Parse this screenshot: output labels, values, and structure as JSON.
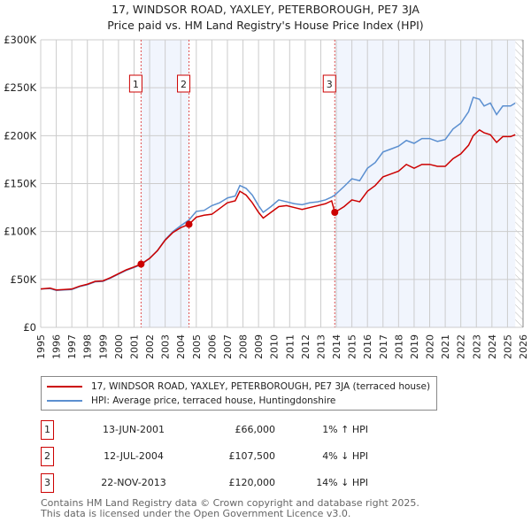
{
  "title": "17, WINDSOR ROAD, YAXLEY, PETERBOROUGH, PE7 3JA",
  "subtitle": "Price paid vs. HM Land Registry's House Price Index (HPI)",
  "chart_data": {
    "type": "line",
    "xlim": [
      1995,
      2026
    ],
    "ylim": [
      0,
      300000
    ],
    "yticks": [
      {
        "v": 0,
        "label": "£0"
      },
      {
        "v": 50000,
        "label": "£50K"
      },
      {
        "v": 100000,
        "label": "£100K"
      },
      {
        "v": 150000,
        "label": "£150K"
      },
      {
        "v": 200000,
        "label": "£200K"
      },
      {
        "v": 250000,
        "label": "£250K"
      },
      {
        "v": 300000,
        "label": "£300K"
      }
    ],
    "xticks": [
      "1995",
      "1996",
      "1997",
      "1998",
      "1999",
      "2000",
      "2001",
      "2002",
      "2003",
      "2004",
      "2005",
      "2006",
      "2007",
      "2008",
      "2009",
      "2010",
      "2011",
      "2012",
      "2013",
      "2014",
      "2015",
      "2016",
      "2017",
      "2018",
      "2019",
      "2020",
      "2021",
      "2022",
      "2023",
      "2024",
      "2025",
      "2026"
    ],
    "shaded_ranges": [
      [
        2001.45,
        2004.53
      ],
      [
        2013.9,
        2025.5
      ]
    ],
    "hatched_from": 2025.5,
    "series": [
      {
        "name": "17, WINDSOR ROAD, YAXLEY, PETERBOROUGH, PE7 3JA (terraced house)",
        "color": "#cc0000",
        "x": [
          1995,
          1995.6,
          1996,
          1996.5,
          1997,
          1997.5,
          1998,
          1998.5,
          1999,
          1999.5,
          2000,
          2000.5,
          2001,
          2001.45,
          2002,
          2002.5,
          2003,
          2003.5,
          2004,
          2004.53,
          2005,
          2005.5,
          2006,
          2006.5,
          2007,
          2007.5,
          2007.8,
          2008.2,
          2008.6,
          2009.0,
          2009.3,
          2009.8,
          2010.3,
          2010.8,
          2011.3,
          2011.8,
          2012.3,
          2012.8,
          2013.3,
          2013.7,
          2013.9,
          2014.5,
          2015,
          2015.5,
          2016,
          2016.5,
          2017,
          2017.5,
          2018,
          2018.5,
          2019,
          2019.5,
          2020,
          2020.5,
          2021,
          2021.5,
          2022,
          2022.5,
          2022.8,
          2023.2,
          2023.5,
          2023.9,
          2024.3,
          2024.7,
          2025.2,
          2025.5
        ],
        "y": [
          40000,
          41000,
          39000,
          39500,
          40000,
          43000,
          45000,
          48000,
          48500,
          52000,
          56000,
          60000,
          63000,
          66000,
          72000,
          80000,
          91000,
          99000,
          104000,
          107500,
          115000,
          117000,
          118000,
          124000,
          130000,
          132000,
          142000,
          138000,
          130000,
          120000,
          114000,
          120000,
          126000,
          127000,
          125000,
          123000,
          125000,
          127000,
          129000,
          132000,
          120000,
          126000,
          133000,
          131000,
          142000,
          148000,
          157000,
          160000,
          163000,
          170000,
          166000,
          170000,
          170000,
          168000,
          168000,
          176000,
          181000,
          190000,
          200000,
          206000,
          203000,
          201000,
          193000,
          199000,
          199000,
          201000
        ]
      },
      {
        "name": "HPI: Average price, terraced house, Huntingdonshire",
        "color": "#5b8fd0",
        "x": [
          1995,
          1995.6,
          1996,
          1996.5,
          1997,
          1997.5,
          1998,
          1998.5,
          1999,
          1999.5,
          2000,
          2000.5,
          2001,
          2001.45,
          2002,
          2002.5,
          2003,
          2003.5,
          2004,
          2004.53,
          2005,
          2005.5,
          2006,
          2006.5,
          2007,
          2007.5,
          2007.8,
          2008.2,
          2008.6,
          2009.0,
          2009.3,
          2009.8,
          2010.3,
          2010.8,
          2011.3,
          2011.8,
          2012.3,
          2012.8,
          2013.3,
          2013.7,
          2013.9,
          2014.5,
          2015,
          2015.5,
          2016,
          2016.5,
          2017,
          2017.5,
          2018,
          2018.5,
          2019,
          2019.5,
          2020,
          2020.5,
          2021,
          2021.5,
          2022,
          2022.5,
          2022.8,
          2023.2,
          2023.5,
          2023.9,
          2024.3,
          2024.7,
          2025.2,
          2025.5
        ],
        "y": [
          40000,
          40500,
          38500,
          39000,
          39500,
          42500,
          44500,
          47500,
          48000,
          51500,
          55500,
          59500,
          62500,
          65500,
          72000,
          80000,
          91500,
          100000,
          106000,
          112000,
          121000,
          122000,
          127000,
          130000,
          135000,
          137000,
          148000,
          145000,
          138000,
          127000,
          120000,
          126000,
          133000,
          131000,
          129000,
          128000,
          130000,
          131000,
          133000,
          136000,
          138000,
          147000,
          155000,
          153000,
          166000,
          172000,
          183000,
          186000,
          189000,
          195000,
          192000,
          197000,
          197000,
          194000,
          196000,
          207000,
          213000,
          225000,
          240000,
          238000,
          231000,
          234000,
          222000,
          231000,
          231000,
          234000
        ]
      }
    ],
    "annotations": [
      {
        "label": "1",
        "x": 2001.45,
        "y": 66000
      },
      {
        "label": "2",
        "x": 2004.53,
        "y": 107500
      },
      {
        "label": "3",
        "x": 2013.9,
        "y": 120000
      }
    ]
  },
  "legend": [
    "17, WINDSOR ROAD, YAXLEY, PETERBOROUGH, PE7 3JA (terraced house)",
    "HPI: Average price, terraced house, Huntingdonshire"
  ],
  "sales": [
    {
      "num": "1",
      "date": "13-JUN-2001",
      "price": "£66,000",
      "hpi": "1% ↑ HPI"
    },
    {
      "num": "2",
      "date": "12-JUL-2004",
      "price": "£107,500",
      "hpi": "4% ↓ HPI"
    },
    {
      "num": "3",
      "date": "22-NOV-2013",
      "price": "£120,000",
      "hpi": "14% ↓ HPI"
    }
  ],
  "footer": [
    "Contains HM Land Registry data © Crown copyright and database right 2025.",
    "This data is licensed under the Open Government Licence v3.0."
  ]
}
